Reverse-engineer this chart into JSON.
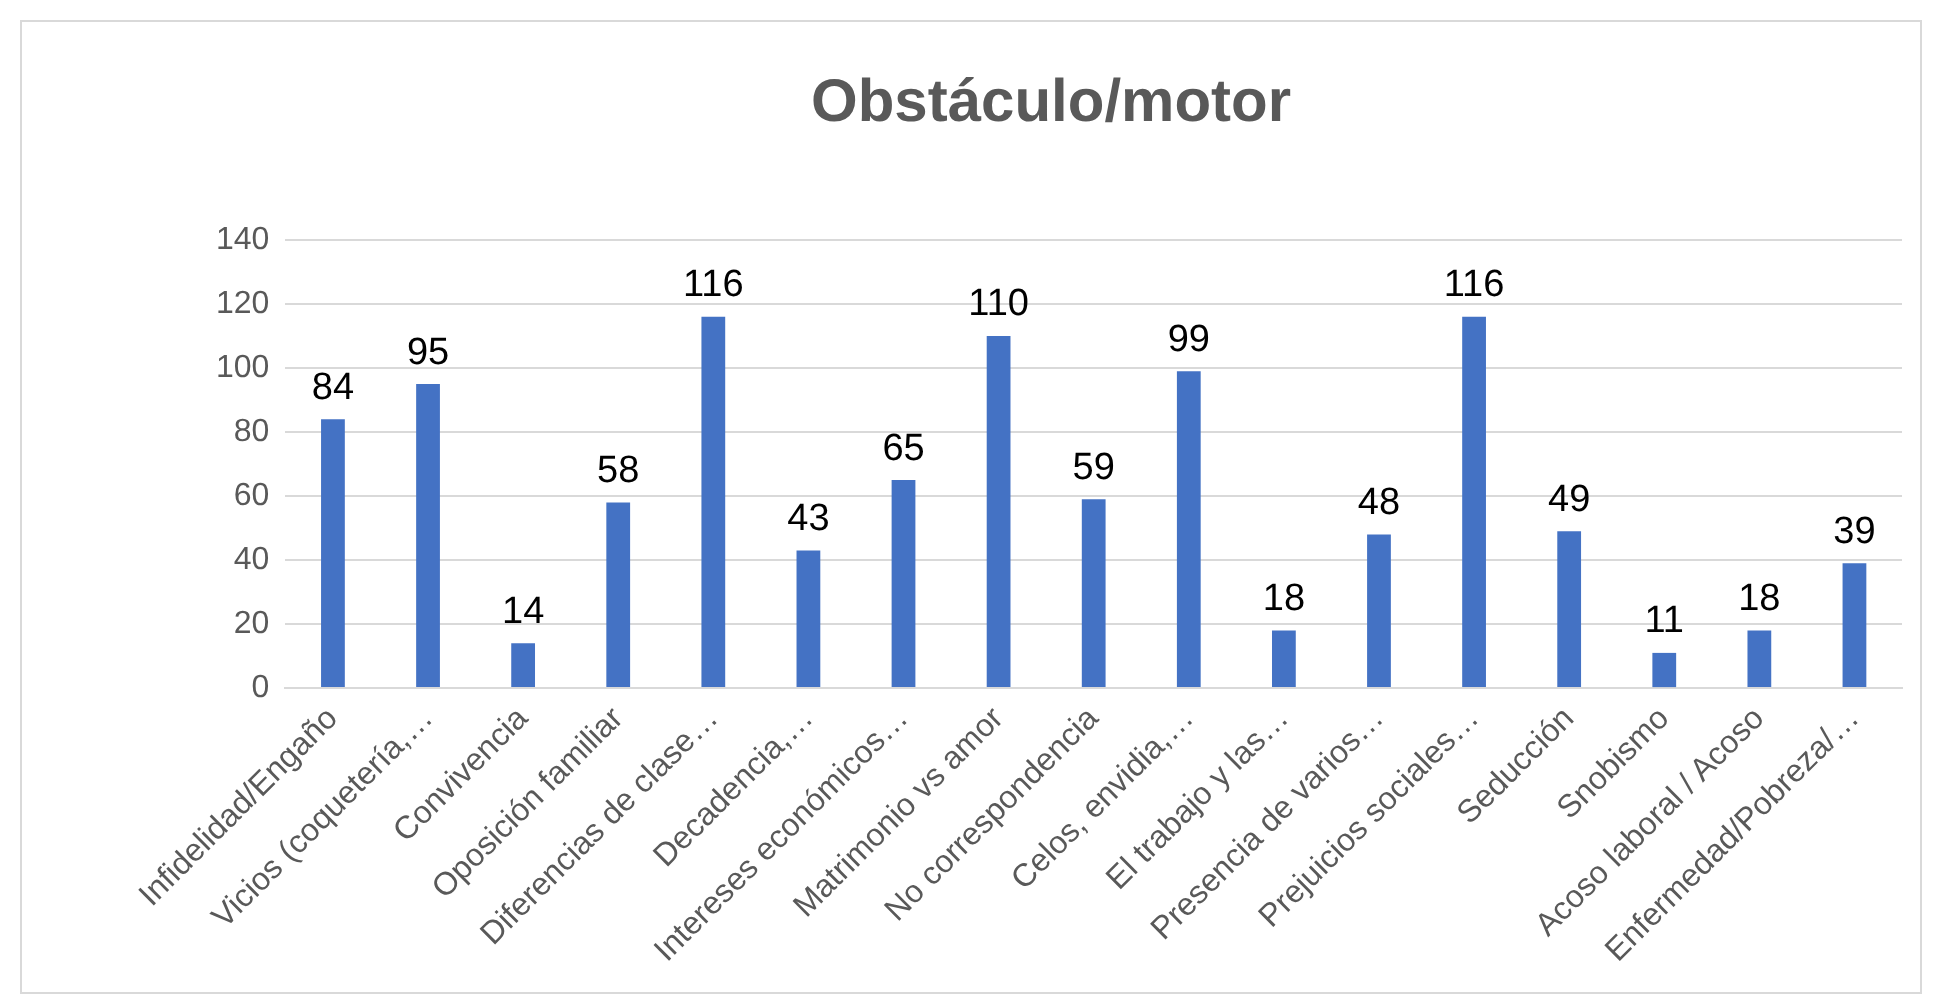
{
  "chart_data": {
    "type": "bar",
    "title": "Obstáculo/motor",
    "categories": [
      "Infidelidad/Engaño",
      "Vicios (coquetería,…",
      "Convivencia",
      "Oposición familiar",
      "Diferencias de clase…",
      "Decadencia,…",
      "Intereses económicos…",
      "Matrimonio vs amor",
      "No correspondencia",
      "Celos, envidia,…",
      "El trabajo y las…",
      "Presencia de varios…",
      "Prejuicios sociales…",
      "Seducción",
      "Snobismo",
      "Acoso laboral / Acoso",
      "Enfermedad/Pobreza/…"
    ],
    "values": [
      84,
      95,
      14,
      58,
      116,
      43,
      65,
      110,
      59,
      99,
      18,
      48,
      116,
      49,
      11,
      18,
      39
    ],
    "color": "#4472c4",
    "ylim": [
      0,
      140
    ],
    "yticks": [
      0,
      20,
      40,
      60,
      80,
      100,
      120,
      140
    ],
    "grid": "y",
    "data_labels": true
  }
}
